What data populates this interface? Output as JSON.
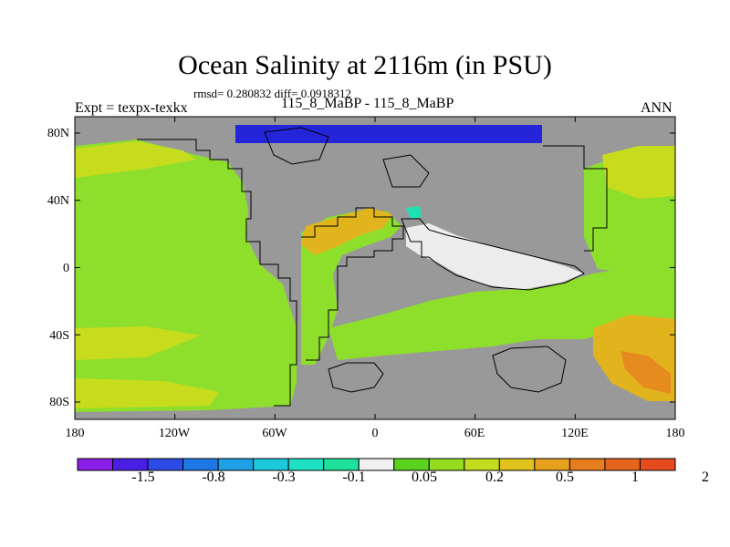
{
  "title": "Ocean Salinity at 2116m (in PSU)",
  "stats": "rmsd= 0.280832 diff= 0.0918312",
  "left_label": "Expt = texpx-texkx",
  "center_label": "115_8_MaBP - 115_8_MaBP",
  "right_label": "ANN",
  "lat_ticks": [
    "80N",
    "40N",
    "0",
    "40S",
    "80S"
  ],
  "lon_ticks": [
    "180",
    "120W",
    "60W",
    "0",
    "60E",
    "120E",
    "180"
  ],
  "colorbar": {
    "colors": [
      "#8a1ee6",
      "#4b1ee6",
      "#2d4be6",
      "#1e78e6",
      "#1ea0e6",
      "#1ec8dc",
      "#1ee1c3",
      "#1ee19b",
      "#f0f0f0",
      "#5ad21e",
      "#96dc1e",
      "#c3dc1e",
      "#e1c31e",
      "#e6a01e",
      "#e67d1e",
      "#e6641e",
      "#e64b1e"
    ],
    "labels": [
      "-1.5",
      "-0.8",
      "-0.3",
      "-0.1",
      "0.05",
      "0.2",
      "0.5",
      "1",
      "2"
    ]
  },
  "colors": {
    "land": "#999999",
    "ocean_base": "#8ede2c",
    "positive_mid": "#c8dc1e",
    "positive_high": "#e1b41e",
    "positive_max": "#e67d1e",
    "negative_strong": "#2424d9",
    "negative_weak": "#1ee1b4",
    "near_zero": "#ececec"
  }
}
